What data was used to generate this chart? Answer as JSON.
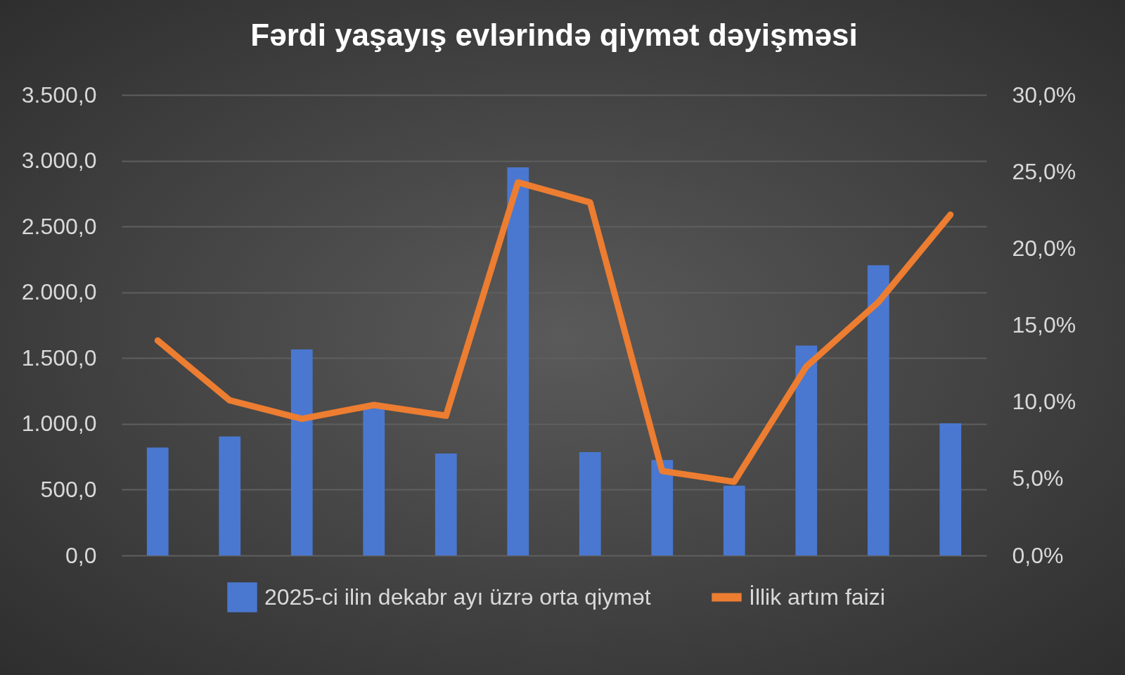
{
  "chart_data": {
    "type": "bar",
    "title": "Fərdi yaşayış evlərində qiymət dəyişməsi",
    "categories": [
      null,
      null,
      null,
      null,
      null,
      null,
      null,
      null,
      null,
      null,
      null,
      null
    ],
    "series": [
      {
        "name": "2025-ci ilin dekabr ayı üzrə orta qiymət",
        "color": "#4a78d0",
        "values": [
          820,
          905,
          1565,
          1130,
          775,
          2950,
          785,
          725,
          530,
          1595,
          2205,
          1005
        ]
      },
      {
        "name": "İllik artım faizi",
        "type": "line",
        "axis": "y2",
        "color": "#ed7d31",
        "values": [
          14.0,
          10.1,
          8.9,
          9.8,
          9.1,
          24.3,
          23.0,
          5.5,
          4.8,
          12.3,
          16.5,
          22.2
        ]
      }
    ],
    "ylim": [
      0,
      3500
    ],
    "yticks": [
      {
        "value": 0,
        "label": "0,0"
      },
      {
        "value": 500,
        "label": "500,0"
      },
      {
        "value": 1000,
        "label": "1.000,0"
      },
      {
        "value": 1500,
        "label": "1.500,0"
      },
      {
        "value": 2000,
        "label": "2.000,0"
      },
      {
        "value": 2500,
        "label": "2.500,0"
      },
      {
        "value": 3000,
        "label": "3.000,0"
      },
      {
        "value": 3500,
        "label": "3.500,0"
      }
    ],
    "y2lim": [
      0,
      30
    ],
    "y2ticks": [
      {
        "value": 0,
        "label": "0,0%"
      },
      {
        "value": 5,
        "label": "5,0%"
      },
      {
        "value": 10,
        "label": "10,0%"
      },
      {
        "value": 15,
        "label": "15,0%"
      },
      {
        "value": 20,
        "label": "20,0%"
      },
      {
        "value": 25,
        "label": "25,0%"
      },
      {
        "value": 30,
        "label": "30,0%"
      }
    ],
    "grid": "y",
    "legend": "bottom",
    "marker": "none"
  }
}
